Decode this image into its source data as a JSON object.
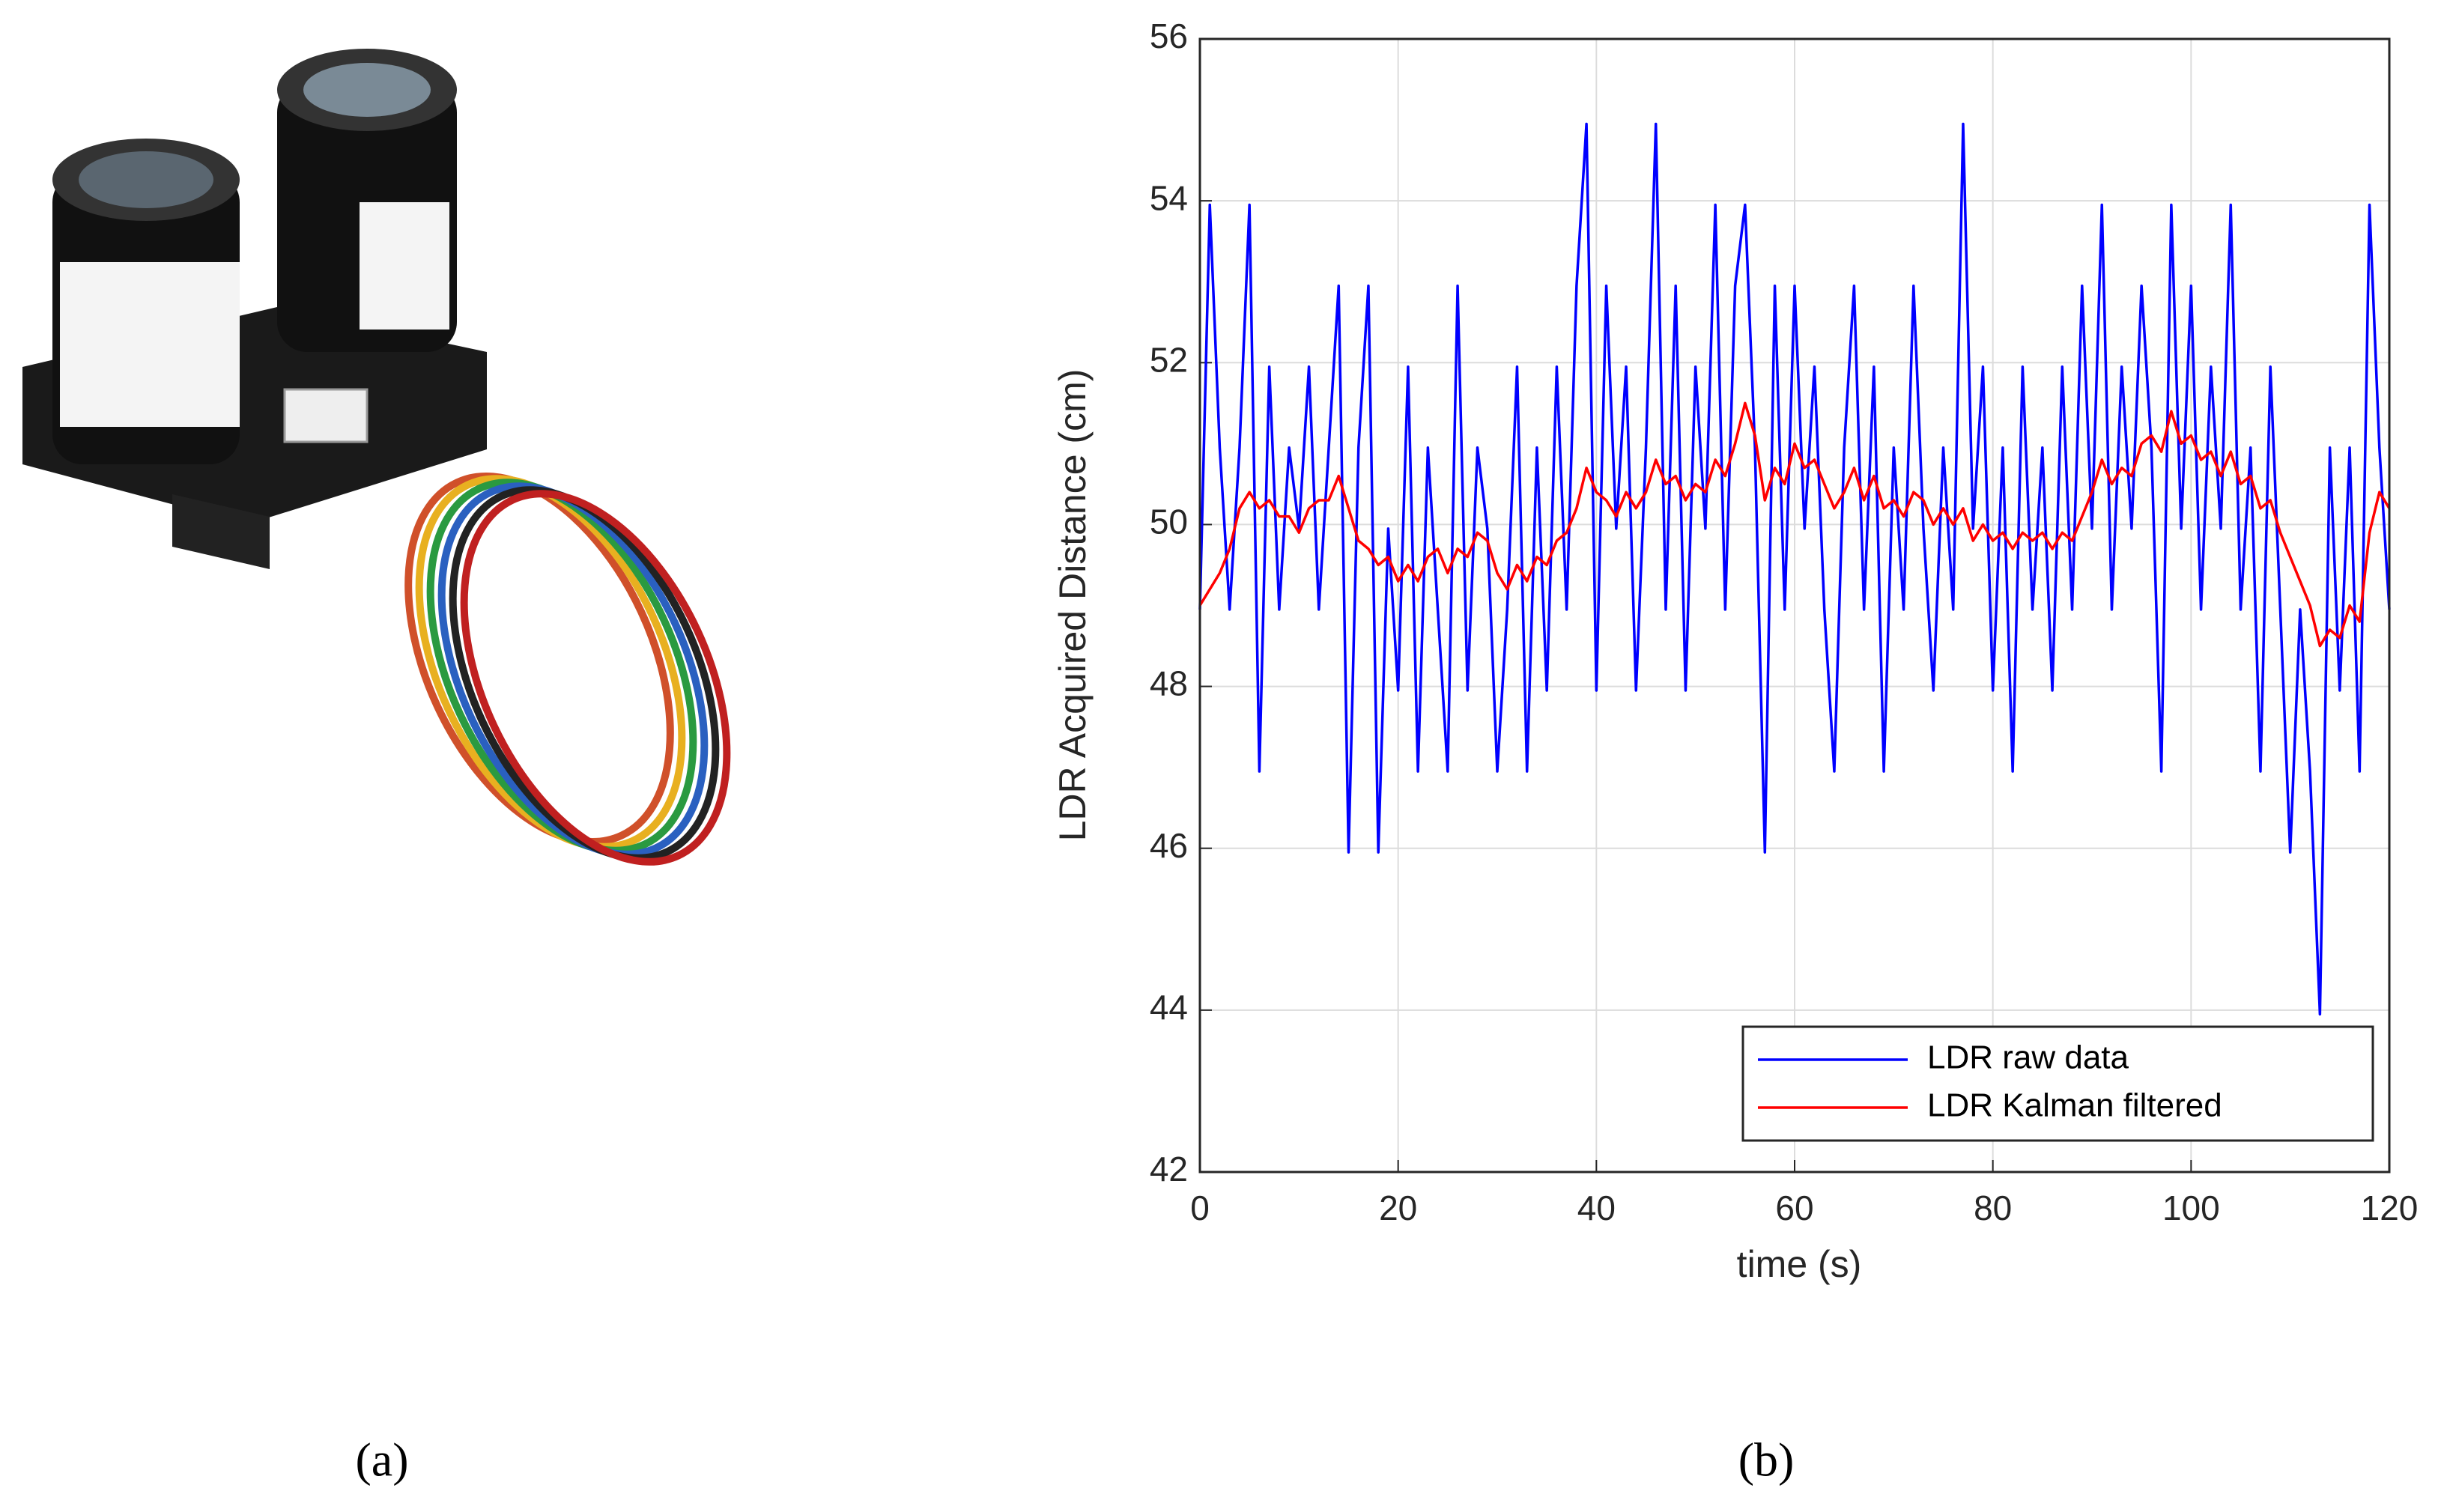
{
  "panel_labels": [
    "(a)",
    "(b)"
  ],
  "chart_data": {
    "type": "line",
    "xlabel": "time (s)",
    "ylabel": "LDR Acquired Distance (cm)",
    "x": [
      0,
      1,
      2,
      3,
      4,
      5,
      6,
      7,
      8,
      9,
      10,
      11,
      12,
      13,
      14,
      15,
      16,
      17,
      18,
      19,
      20,
      21,
      22,
      23,
      24,
      25,
      26,
      27,
      28,
      29,
      30,
      31,
      32,
      33,
      34,
      35,
      36,
      37,
      38,
      39,
      40,
      41,
      42,
      43,
      44,
      45,
      46,
      47,
      48,
      49,
      50,
      51,
      52,
      53,
      54,
      55,
      56,
      57,
      58,
      59,
      60,
      61,
      62,
      63,
      64,
      65,
      66,
      67,
      68,
      69,
      70,
      71,
      72,
      73,
      74,
      75,
      76,
      77,
      78,
      79,
      80,
      81,
      82,
      83,
      84,
      85,
      86,
      87,
      88,
      89,
      90,
      91,
      92,
      93,
      94,
      95,
      96,
      97,
      98,
      99,
      100,
      101,
      102,
      103,
      104,
      105,
      106,
      107,
      108,
      109,
      110,
      111,
      112,
      113,
      114,
      115,
      116,
      117,
      118,
      119,
      120
    ],
    "series": [
      {
        "name": "LDR raw data",
        "color": "#0000ff",
        "values": [
          48.95,
          53.95,
          50.95,
          48.95,
          50.95,
          53.95,
          46.95,
          51.95,
          48.95,
          50.95,
          49.95,
          51.95,
          48.95,
          50.95,
          52.95,
          45.95,
          50.95,
          52.95,
          45.95,
          49.95,
          47.95,
          51.95,
          46.95,
          50.95,
          48.95,
          46.95,
          52.95,
          47.95,
          50.95,
          49.95,
          46.95,
          48.95,
          51.95,
          46.95,
          50.95,
          47.95,
          51.95,
          48.95,
          52.95,
          54.95,
          47.95,
          52.95,
          49.95,
          51.95,
          47.95,
          50.95,
          54.95,
          48.95,
          52.95,
          47.95,
          51.95,
          49.95,
          53.95,
          48.95,
          52.95,
          53.95,
          50.95,
          45.95,
          52.95,
          48.95,
          52.95,
          49.95,
          51.95,
          48.95,
          46.95,
          50.95,
          52.95,
          48.95,
          51.95,
          46.95,
          50.95,
          48.95,
          52.95,
          49.95,
          47.95,
          50.95,
          48.95,
          54.95,
          49.95,
          51.95,
          47.95,
          50.95,
          46.95,
          51.95,
          48.95,
          50.95,
          47.95,
          51.95,
          48.95,
          52.95,
          49.95,
          53.95,
          48.95,
          51.95,
          49.95,
          52.95,
          50.95,
          46.95,
          53.95,
          49.95,
          52.95,
          48.95,
          51.95,
          49.95,
          53.95,
          48.95,
          50.95,
          46.95,
          51.95,
          48.95,
          45.95,
          48.95,
          46.95,
          43.95,
          50.95,
          47.95,
          50.95,
          46.95,
          53.95,
          50.95,
          48.95
        ]
      },
      {
        "name": "LDR Kalman filtered",
        "color": "#ff0000",
        "values": [
          49.0,
          49.2,
          49.4,
          49.7,
          50.2,
          50.4,
          50.2,
          50.3,
          50.1,
          50.1,
          49.9,
          50.2,
          50.3,
          50.3,
          50.6,
          50.2,
          49.8,
          49.7,
          49.5,
          49.6,
          49.3,
          49.5,
          49.3,
          49.6,
          49.7,
          49.4,
          49.7,
          49.6,
          49.9,
          49.8,
          49.4,
          49.2,
          49.5,
          49.3,
          49.6,
          49.5,
          49.8,
          49.9,
          50.2,
          50.7,
          50.4,
          50.3,
          50.1,
          50.4,
          50.2,
          50.4,
          50.8,
          50.5,
          50.6,
          50.3,
          50.5,
          50.4,
          50.8,
          50.6,
          51.0,
          51.5,
          51.1,
          50.3,
          50.7,
          50.5,
          51.0,
          50.7,
          50.8,
          50.5,
          50.2,
          50.4,
          50.7,
          50.3,
          50.6,
          50.2,
          50.3,
          50.1,
          50.4,
          50.3,
          50.0,
          50.2,
          50.0,
          50.2,
          49.8,
          50.0,
          49.8,
          49.9,
          49.7,
          49.9,
          49.8,
          49.9,
          49.7,
          49.9,
          49.8,
          50.1,
          50.4,
          50.8,
          50.5,
          50.7,
          50.6,
          51.0,
          51.1,
          50.9,
          51.4,
          51.0,
          51.1,
          50.8,
          50.9,
          50.6,
          50.9,
          50.5,
          50.6,
          50.2,
          50.3,
          49.9,
          49.6,
          49.3,
          49.0,
          48.5,
          48.7,
          48.6,
          49.0,
          48.8,
          49.9,
          50.4,
          50.2
        ]
      }
    ],
    "xlim": [
      0,
      120
    ],
    "xticks": [
      0,
      20,
      40,
      60,
      80,
      100,
      120
    ],
    "ylim": [
      42,
      56
    ],
    "yticks": [
      42,
      44,
      46,
      48,
      50,
      52,
      54,
      56
    ],
    "grid": true,
    "legend": "lower right"
  }
}
